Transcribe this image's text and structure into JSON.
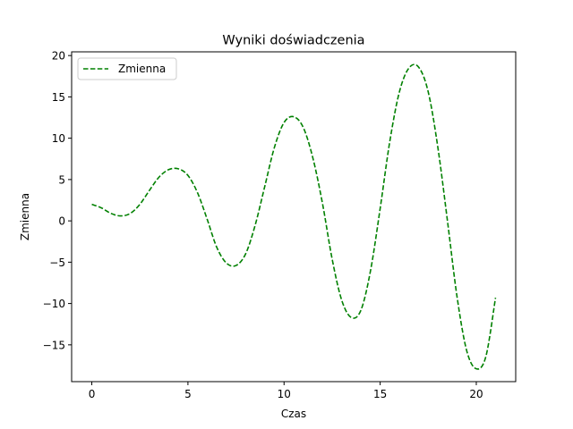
{
  "chart_data": {
    "type": "line",
    "title": "Wyniki doświadczenia",
    "xlabel": "Czas",
    "ylabel": "Zmienna",
    "xlim": [
      -1.05,
      22.05
    ],
    "ylim": [
      -19.45,
      20.45
    ],
    "xticks": [
      0,
      5,
      10,
      15,
      20
    ],
    "yticks": [
      -15,
      -10,
      -5,
      0,
      5,
      10,
      15,
      20
    ],
    "xtick_labels": [
      "0",
      "5",
      "10",
      "15",
      "20"
    ],
    "ytick_labels": [
      "−15",
      "−10",
      "−5",
      "0",
      "5",
      "10",
      "15",
      "20"
    ],
    "grid": false,
    "legend_position": "top-left",
    "series": [
      {
        "name": "Zmienna",
        "color": "#008000",
        "line_style": "dashed",
        "x": [
          0,
          0.5,
          1.0,
          1.5,
          2.0,
          2.5,
          3.0,
          3.5,
          4.0,
          4.5,
          5.0,
          5.5,
          6.0,
          6.5,
          7.0,
          7.5,
          8.0,
          8.5,
          9.0,
          9.5,
          10.0,
          10.5,
          11.0,
          11.5,
          12.0,
          12.5,
          13.0,
          13.5,
          14.0,
          14.5,
          15.0,
          15.5,
          16.0,
          16.5,
          17.0,
          17.5,
          18.0,
          18.5,
          19.0,
          19.5,
          20.0,
          20.5,
          21.0
        ],
        "y": [
          2.0,
          1.57,
          0.9,
          0.6,
          0.9,
          2.0,
          3.7,
          5.3,
          6.2,
          6.3,
          5.5,
          3.4,
          0.2,
          -3.2,
          -5.1,
          -5.4,
          -4.0,
          -0.5,
          4.2,
          8.9,
          11.9,
          12.6,
          11.3,
          7.6,
          2.1,
          -4.6,
          -9.6,
          -11.7,
          -10.8,
          -6.0,
          1.5,
          9.6,
          15.6,
          18.5,
          18.6,
          15.6,
          8.9,
          0.0,
          -9.2,
          -15.7,
          -17.9,
          -16.4,
          -9.3
        ]
      }
    ]
  }
}
